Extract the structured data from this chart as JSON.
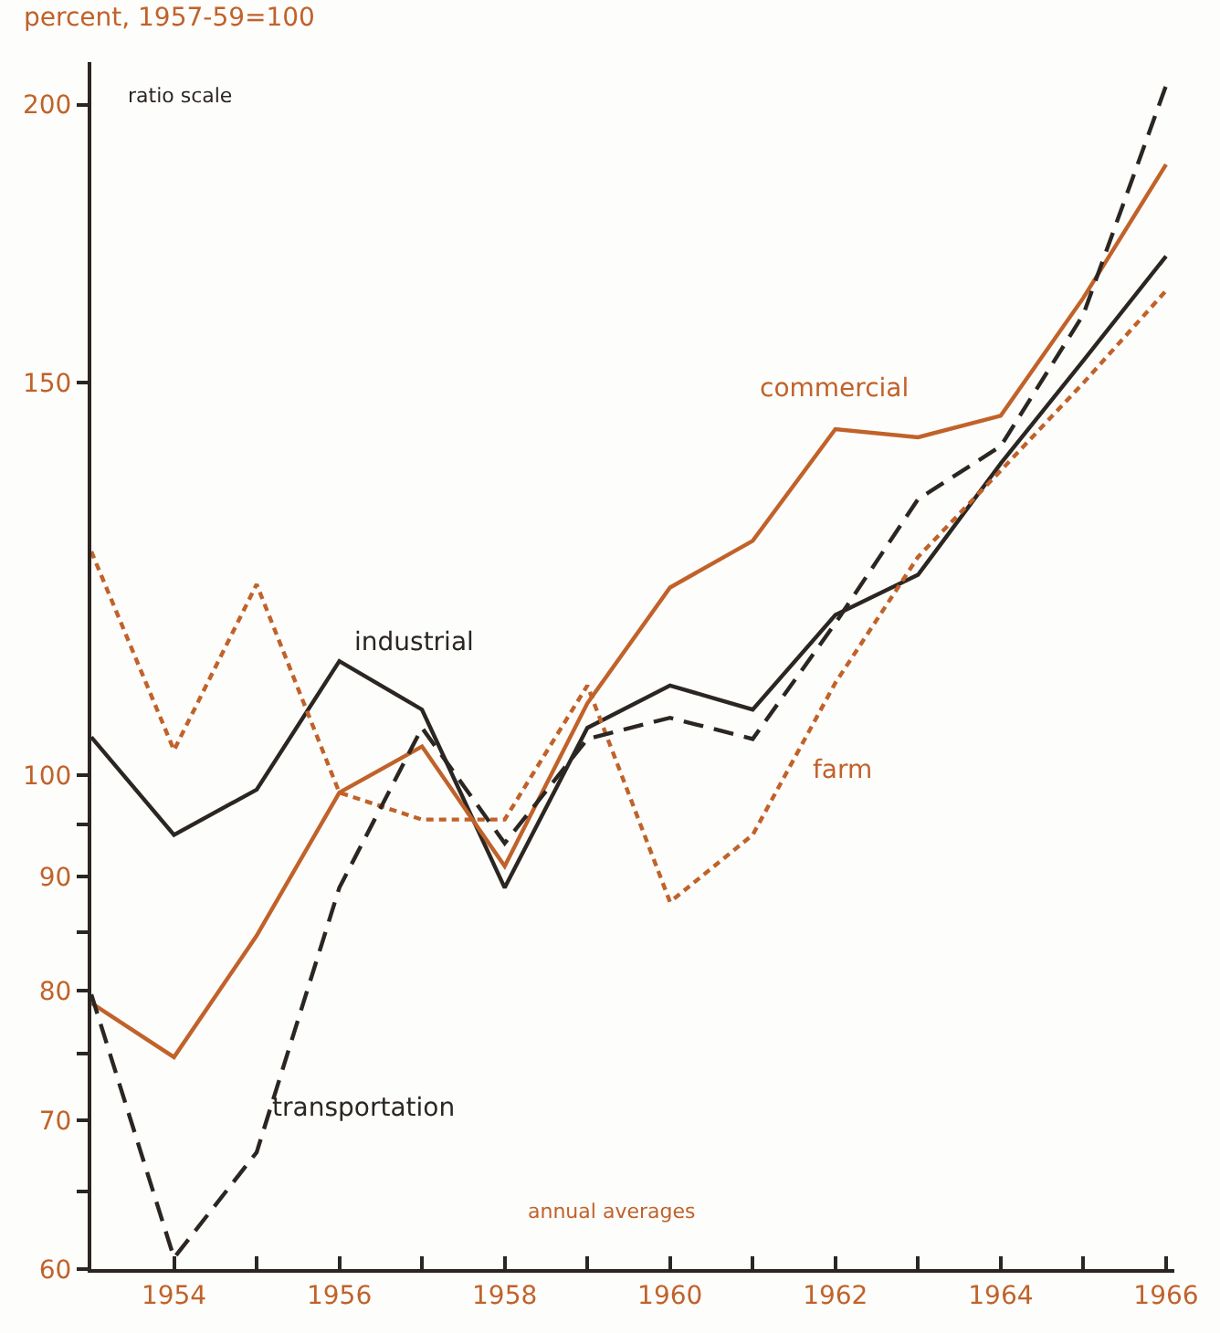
{
  "chart_data": {
    "type": "line",
    "ylabel": "percent, 1957-59=100",
    "annotations": [
      "ratio scale",
      "annual averages"
    ],
    "x": [
      1953,
      1954,
      1955,
      1956,
      1957,
      1958,
      1959,
      1960,
      1961,
      1962,
      1963,
      1964,
      1965,
      1966
    ],
    "series": [
      {
        "name": "industrial",
        "color": "#2b2622",
        "line_style": "solid",
        "values": [
          104,
          94,
          98.5,
          112.5,
          107,
          89,
          105,
          109.7,
          107,
          118,
          123,
          138,
          153.5,
          171
        ]
      },
      {
        "name": "commercial",
        "color": "#c0622a",
        "line_style": "solid",
        "values": [
          79,
          74.7,
          84.7,
          98.2,
          103,
          91,
          107.7,
          121.4,
          127.4,
          143,
          141.8,
          145,
          163.8,
          188
        ]
      },
      {
        "name": "farm",
        "color": "#c0622a",
        "line_style": "dotted",
        "values": [
          126,
          102.6,
          121.8,
          98.2,
          95.5,
          95.5,
          109.7,
          87.7,
          94,
          110,
          125.3,
          137,
          150,
          165
        ]
      },
      {
        "name": "transportation",
        "color": "#2b2622",
        "line_style": "dashed",
        "values": [
          79.7,
          60.7,
          67.7,
          89,
          105,
          93.2,
          103.8,
          106.1,
          103.8,
          117,
          133,
          140.5,
          161,
          204
        ]
      }
    ],
    "log": "y",
    "grid": false,
    "legend": false,
    "xlim": [
      1953,
      1966.1
    ],
    "xticks": [
      {
        "value": 1953,
        "label": null
      },
      1954,
      {
        "value": 1955,
        "label": null
      },
      1956,
      {
        "value": 1957,
        "label": null
      },
      1958,
      {
        "value": 1959,
        "label": null
      },
      1960,
      {
        "value": 1961,
        "label": null
      },
      1962,
      {
        "value": 1963,
        "label": null
      },
      1964,
      {
        "value": 1965,
        "label": null
      },
      1966
    ],
    "ylim": [
      60,
      209
    ],
    "yticks": [
      60,
      {
        "value": 65,
        "label": null
      },
      70,
      {
        "value": 75,
        "label": null
      },
      80,
      {
        "value": 85,
        "label": null
      },
      90,
      {
        "value": 95,
        "label": null
      },
      100,
      150,
      200
    ]
  }
}
